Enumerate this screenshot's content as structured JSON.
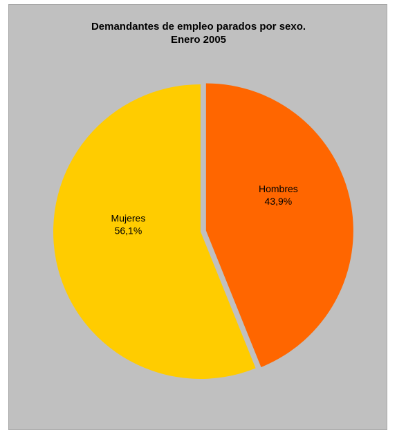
{
  "chart_data": {
    "type": "pie",
    "title": "Demandantes de empleo parados por sexo.",
    "subtitle": "Enero 2005",
    "categories": [
      "Hombres",
      "Mujeres"
    ],
    "values": [
      43.9,
      56.1
    ],
    "value_labels": [
      "43,9%",
      "56,1%"
    ],
    "colors": [
      "#ff6600",
      "#ffcc00"
    ],
    "background_color": "#c0c0c0",
    "exploded": [
      "Hombres"
    ],
    "legend": "none"
  }
}
